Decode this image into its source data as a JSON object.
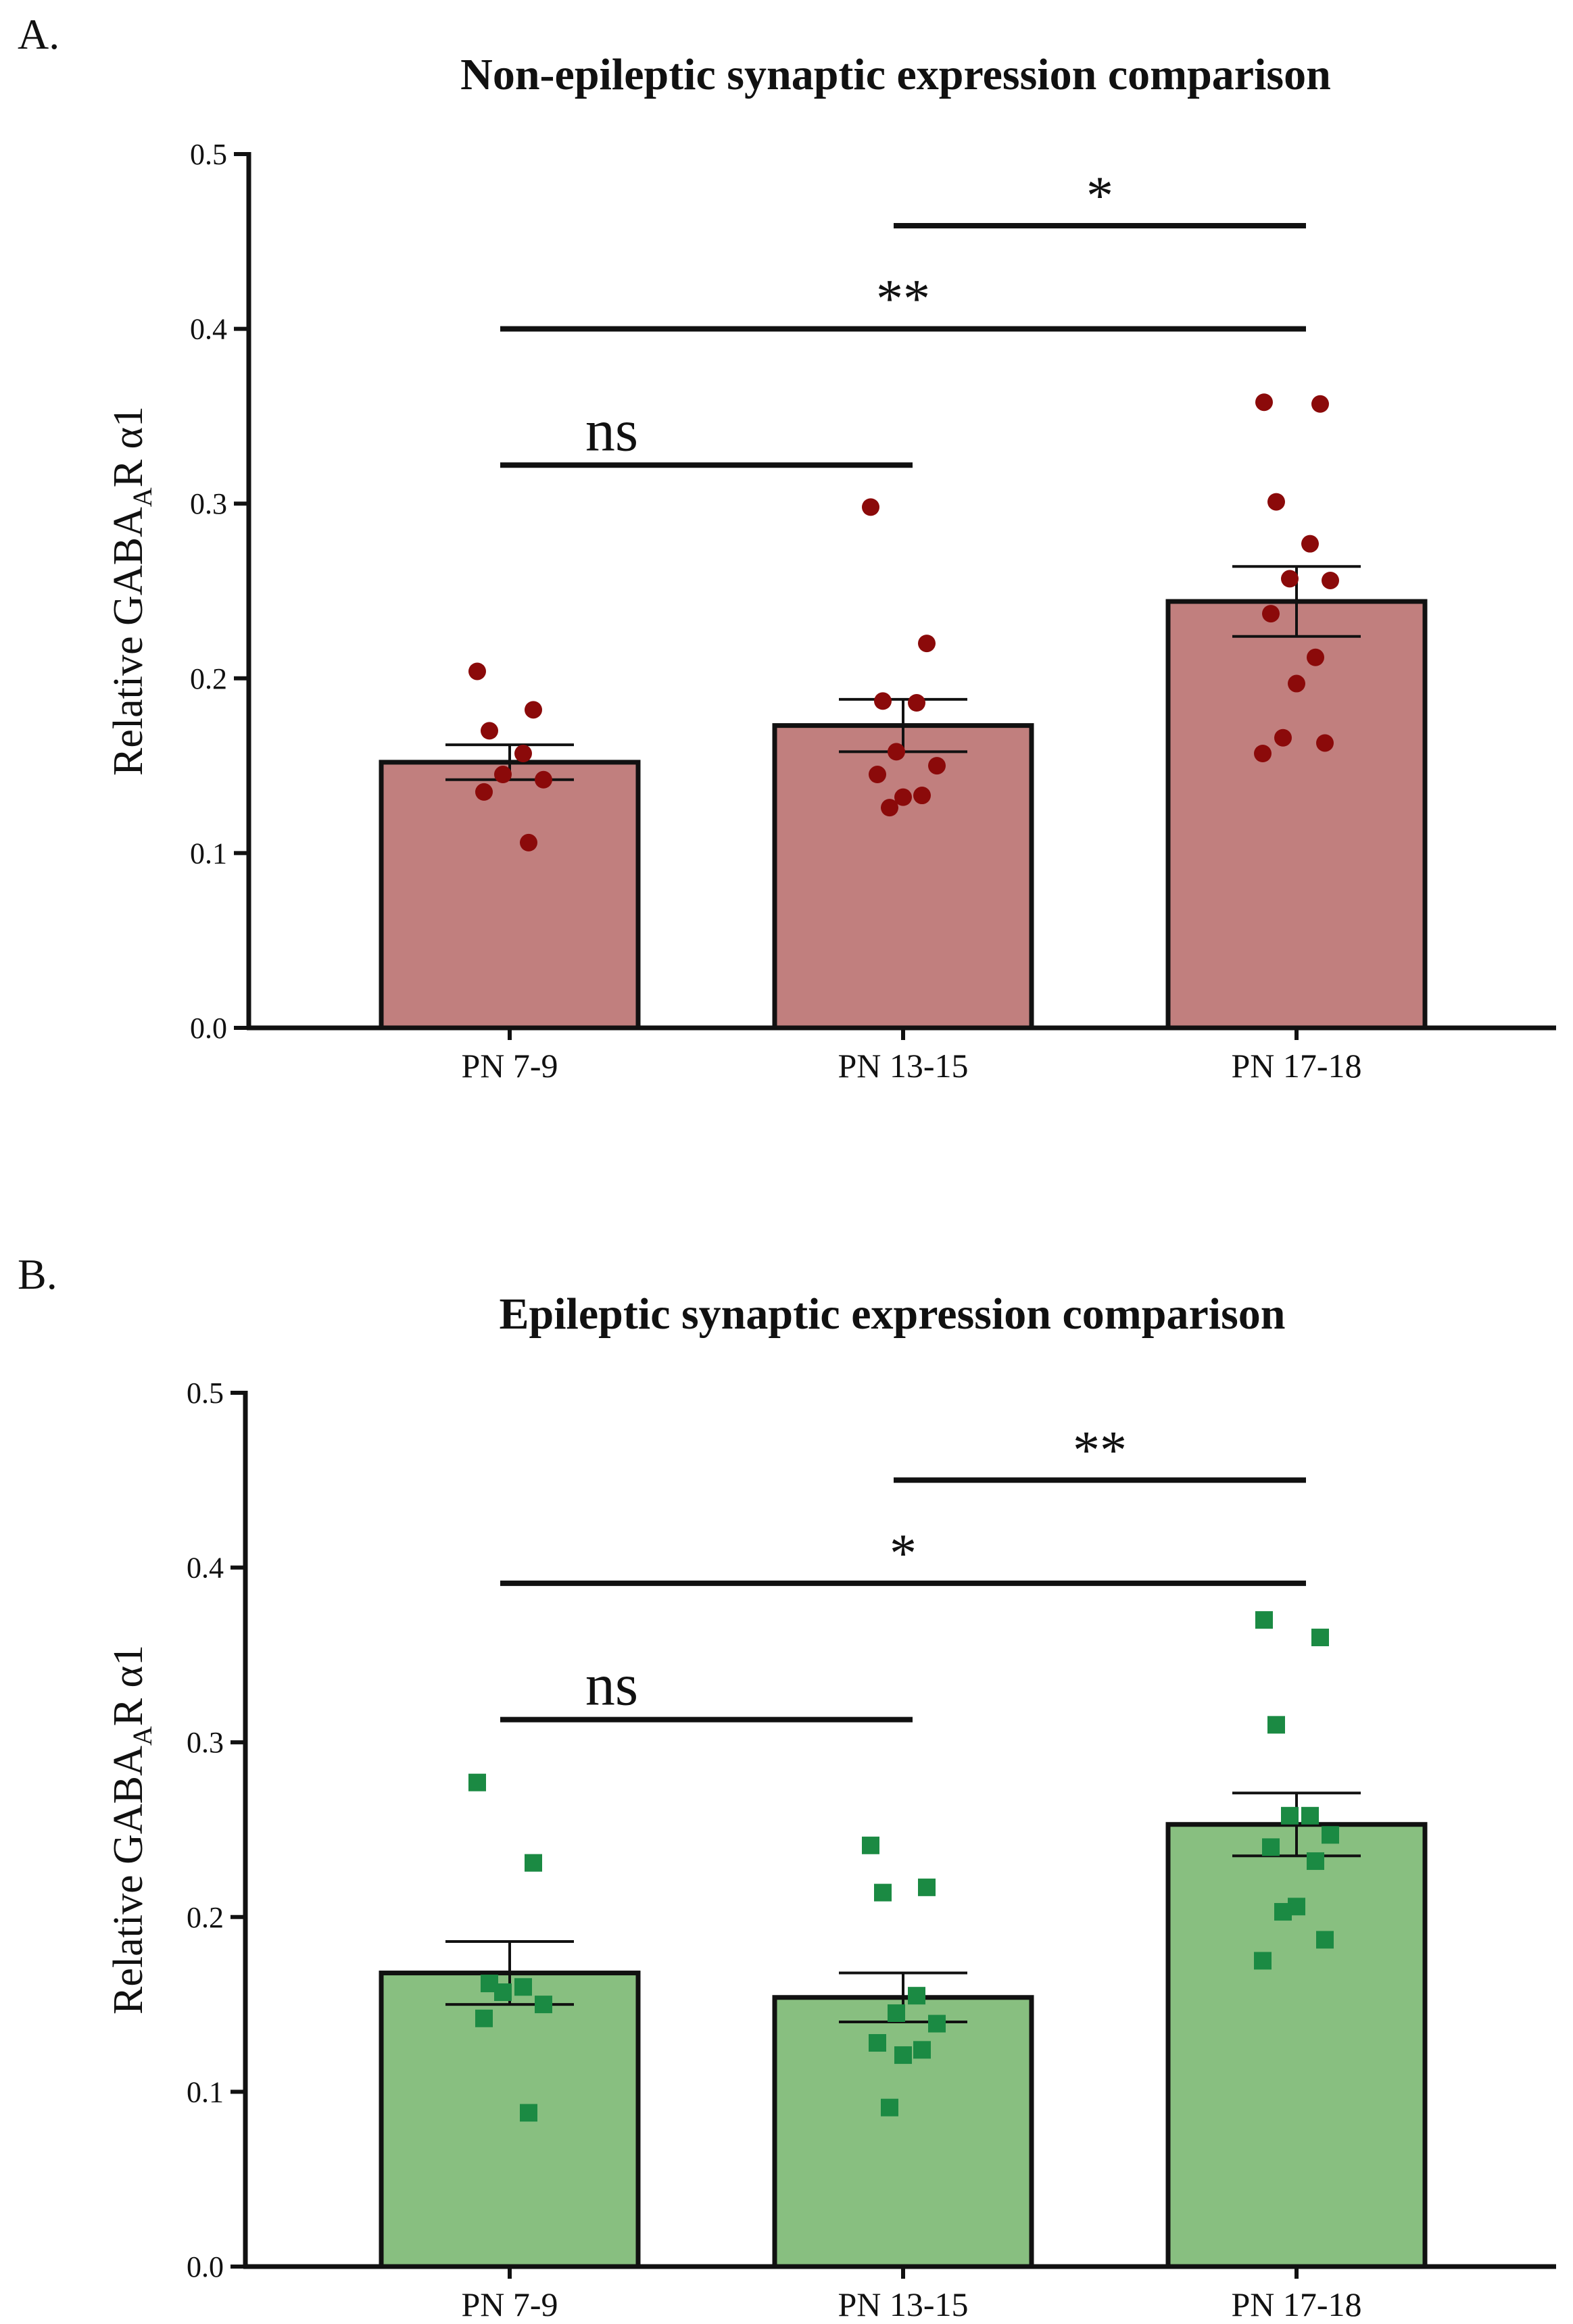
{
  "chart_data": [
    {
      "panel_label": "A.",
      "type": "bar",
      "title": "Non-epileptic synaptic expression comparison",
      "ylabel": {
        "main": "Relative GABA",
        "subscript": "A",
        "suffix": "R α1"
      },
      "ylim": [
        0,
        0.5
      ],
      "yticks": [
        "0.0",
        "0.1",
        "0.2",
        "0.3",
        "0.4",
        "0.5"
      ],
      "categories": [
        "PN 7-9",
        "PN 13-15",
        "PN 17-18"
      ],
      "values": [
        0.152,
        0.173,
        0.244
      ],
      "sem": [
        0.01,
        0.015,
        0.02
      ],
      "points": [
        [
          0.204,
          0.182,
          0.17,
          0.157,
          0.145,
          0.142,
          0.135,
          0.106
        ],
        [
          0.298,
          0.22,
          0.187,
          0.186,
          0.158,
          0.15,
          0.145,
          0.133,
          0.132,
          0.126
        ],
        [
          0.358,
          0.357,
          0.301,
          0.277,
          0.257,
          0.256,
          0.237,
          0.212,
          0.197,
          0.166,
          0.163,
          0.157
        ]
      ],
      "marker": "circle",
      "bar_color": "#c17f7e",
      "point_color": "#8b0a0a",
      "significance": [
        {
          "from": 0,
          "to": 1,
          "y": 0.322,
          "label": "ns"
        },
        {
          "from": 0,
          "to": 2,
          "y": 0.4,
          "label": "**"
        },
        {
          "from": 1,
          "to": 2,
          "y": 0.459,
          "label": "*"
        }
      ]
    },
    {
      "panel_label": "B.",
      "type": "bar",
      "title": "Epileptic synaptic expression comparison",
      "ylabel": {
        "main": "Relative GABA",
        "subscript": "A",
        "suffix": "R α1"
      },
      "ylim": [
        0,
        0.5
      ],
      "yticks": [
        "0.0",
        "0.1",
        "0.2",
        "0.3",
        "0.4",
        "0.5"
      ],
      "categories": [
        "PN 7-9",
        "PN 13-15",
        "PN 17-18"
      ],
      "values": [
        0.168,
        0.154,
        0.253
      ],
      "sem": [
        0.018,
        0.014,
        0.018
      ],
      "points": [
        [
          0.277,
          0.231,
          0.162,
          0.16,
          0.157,
          0.15,
          0.142,
          0.088
        ],
        [
          0.241,
          0.217,
          0.214,
          0.155,
          0.145,
          0.139,
          0.128,
          0.124,
          0.121,
          0.091
        ],
        [
          0.37,
          0.36,
          0.31,
          0.258,
          0.258,
          0.247,
          0.24,
          0.232,
          0.206,
          0.203,
          0.187,
          0.175
        ]
      ],
      "marker": "square",
      "bar_color": "#88bf80",
      "point_color": "#1b8a43",
      "significance": [
        {
          "from": 0,
          "to": 1,
          "y": 0.313,
          "label": "ns"
        },
        {
          "from": 0,
          "to": 2,
          "y": 0.391,
          "label": "*"
        },
        {
          "from": 1,
          "to": 2,
          "y": 0.45,
          "label": "**"
        }
      ]
    }
  ]
}
